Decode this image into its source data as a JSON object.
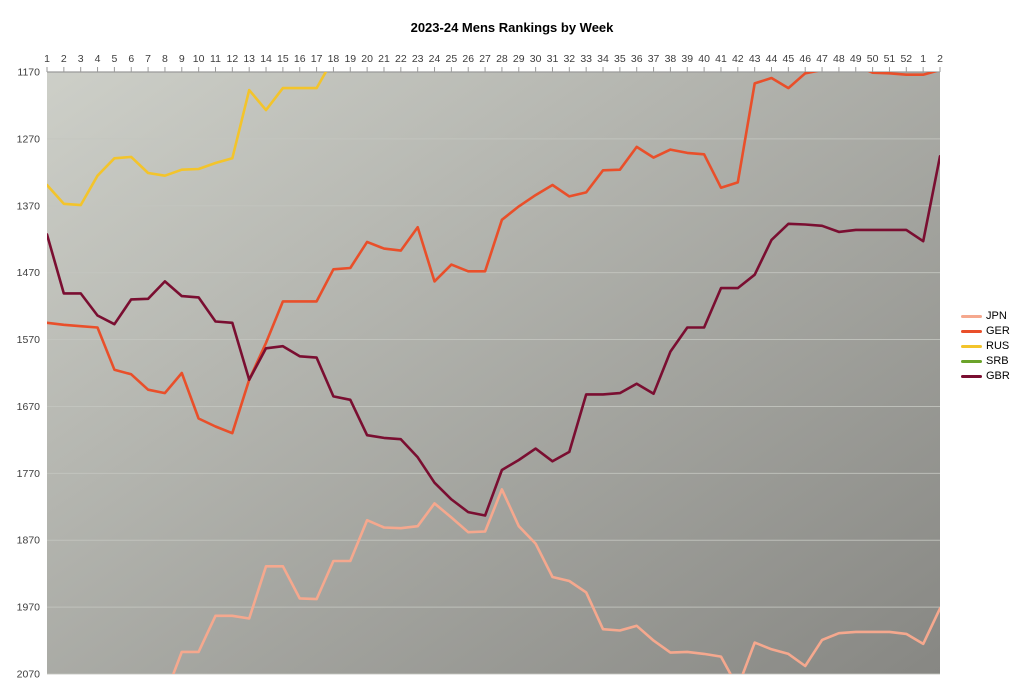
{
  "title": "2023-24 Mens Rankings by Week",
  "chart_data": {
    "type": "line",
    "title": "2023-24 Mens Rankings by Week",
    "x_tick_labels": [
      "1",
      "2",
      "3",
      "4",
      "5",
      "6",
      "7",
      "8",
      "9",
      "10",
      "11",
      "12",
      "13",
      "14",
      "15",
      "16",
      "17",
      "18",
      "19",
      "20",
      "21",
      "22",
      "23",
      "24",
      "25",
      "26",
      "27",
      "28",
      "29",
      "30",
      "31",
      "32",
      "33",
      "34",
      "35",
      "36",
      "37",
      "38",
      "39",
      "40",
      "41",
      "42",
      "43",
      "44",
      "45",
      "46",
      "47",
      "48",
      "49",
      "50",
      "51",
      "52",
      "1",
      "2"
    ],
    "y_ticks": [
      1170,
      1270,
      1370,
      1470,
      1570,
      1670,
      1770,
      1870,
      1970,
      2070
    ],
    "ylim": [
      1170,
      2070
    ],
    "y_axis_inverted": true,
    "grid": true,
    "legend_position": "right",
    "plot_bg_gradient": [
      "#cdcfc8",
      "#878783"
    ],
    "grid_color": "#c4c6c0",
    "axis_color": "#9a9a9a",
    "tick_label_color": "#3d3d3d",
    "series": [
      {
        "name": "JPN",
        "color": "#F5A88E",
        "values": [
          null,
          null,
          null,
          null,
          null,
          null,
          null,
          2103,
          2037,
          2037,
          1983,
          1983,
          1987,
          1909,
          1909,
          1957,
          1958,
          1901,
          1901,
          1840,
          1851,
          1852,
          1849,
          1815,
          1836,
          1858,
          1857,
          1794,
          1849,
          1875,
          1925,
          1931,
          1948,
          2003,
          2005,
          1998,
          2020,
          2038,
          2037,
          2040,
          2044,
          2090,
          2023,
          2033,
          2040,
          2058,
          2019,
          2009,
          2007,
          2007,
          2007,
          2010,
          2025,
          1972
        ]
      },
      {
        "name": "GER",
        "color": "#E94F2A",
        "values": [
          1545,
          1548,
          1550,
          1552,
          1615,
          1622,
          1645,
          1650,
          1620,
          1688,
          1700,
          1710,
          1630,
          1575,
          1513,
          1513,
          1513,
          1465,
          1463,
          1424,
          1434,
          1437,
          1402,
          1483,
          1458,
          1468,
          1468,
          1391,
          1371,
          1354,
          1339,
          1356,
          1350,
          1317,
          1316,
          1282,
          1298,
          1286,
          1291,
          1293,
          1343,
          1335,
          1187,
          1179,
          1194,
          1172,
          1167,
          1160,
          1160,
          1171,
          1172,
          1174,
          1174,
          1167
        ]
      },
      {
        "name": "RUS",
        "color": "#F3C42B",
        "values": [
          1339,
          1367,
          1369,
          1325,
          1299,
          1297,
          1321,
          1325,
          1316,
          1315,
          1306,
          1299,
          1197,
          1227,
          1194,
          1194,
          1194,
          1150,
          null,
          null,
          null,
          null,
          null,
          null,
          null,
          null,
          null,
          null,
          null,
          null,
          null,
          null,
          null,
          null,
          null,
          null,
          null,
          null,
          null,
          null,
          null,
          null,
          null,
          null,
          null,
          null,
          null,
          null,
          null,
          null,
          null,
          null,
          null,
          null
        ]
      },
      {
        "name": "SRB",
        "color": "#6BA32A",
        "values": [
          null,
          null,
          null,
          null,
          null,
          null,
          null,
          null,
          null,
          null,
          null,
          null,
          null,
          null,
          null,
          null,
          null,
          null,
          null,
          null,
          null,
          null,
          null,
          null,
          null,
          null,
          null,
          null,
          null,
          null,
          null,
          null,
          null,
          null,
          null,
          null,
          null,
          null,
          null,
          null,
          null,
          null,
          null,
          null,
          null,
          null,
          null,
          null,
          null,
          null,
          null,
          null,
          null,
          null
        ]
      },
      {
        "name": "GBR",
        "color": "#7A0E31",
        "values": [
          1413,
          1501,
          1501,
          1534,
          1547,
          1510,
          1509,
          1483,
          1505,
          1507,
          1543,
          1545,
          1630,
          1583,
          1580,
          1595,
          1597,
          1655,
          1660,
          1713,
          1717,
          1719,
          1746,
          1784,
          1809,
          1828,
          1833,
          1765,
          1750,
          1733,
          1752,
          1738,
          1652,
          1652,
          1650,
          1636,
          1651,
          1588,
          1552,
          1552,
          1493,
          1493,
          1473,
          1421,
          1397,
          1398,
          1400,
          1409,
          1406,
          1406,
          1406,
          1406,
          1423,
          1296
        ]
      }
    ]
  }
}
